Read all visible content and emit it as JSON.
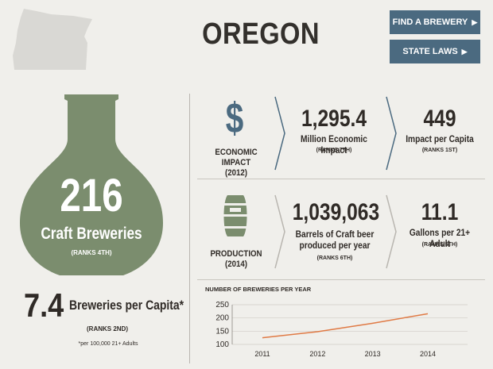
{
  "header": {
    "title": "OREGON",
    "buttons": [
      {
        "label": "FIND A BREWERY",
        "icon": "chevron-right-icon"
      },
      {
        "label": "STATE LAWS",
        "icon": "chevron-right-icon"
      }
    ]
  },
  "breweries": {
    "count": "216",
    "label": "Craft Breweries",
    "rank": "(RANKS 4TH)"
  },
  "per_capita": {
    "value": "7.4",
    "label": "Breweries per Capita*",
    "rank": "(RANKS 2ND)",
    "note": "*per 100,000 21+ Adults"
  },
  "economic": {
    "icon": "dollar-icon",
    "label_line1": "ECONOMIC IMPACT",
    "label_line2": "(2012)",
    "impact_value": "1,295.4",
    "impact_label": "Million Economic Impact",
    "impact_rank": "(RANKS 7TH)",
    "capita_value": "449",
    "capita_label": "Impact per Capita",
    "capita_rank": "(RANKS 1ST)"
  },
  "production": {
    "icon": "keg-icon",
    "label_line1": "PRODUCTION",
    "label_line2": "(2014)",
    "barrels_value": "1,039,063",
    "barrels_label_line1": "Barrels of Craft beer",
    "barrels_label_line2": "produced per year",
    "barrels_rank": "(RANKS 6TH)",
    "gallons_value": "11.1",
    "gallons_label": "Gallons per 21+ Adult",
    "gallons_rank": "(RANKS 5TH)"
  },
  "colors": {
    "bottle": "#7b8d6e",
    "accent": "#4b6a80",
    "line": "#e07a45"
  },
  "chart_data": {
    "type": "line",
    "title": "NUMBER OF BREWERIES PER YEAR",
    "categories": [
      "2011",
      "2012",
      "2013",
      "2014"
    ],
    "series": [
      {
        "values": [
          125,
          148,
          180,
          216
        ]
      }
    ],
    "ylim": [
      100,
      250
    ],
    "yticks": [
      100,
      150,
      200,
      250
    ],
    "grid": true
  }
}
